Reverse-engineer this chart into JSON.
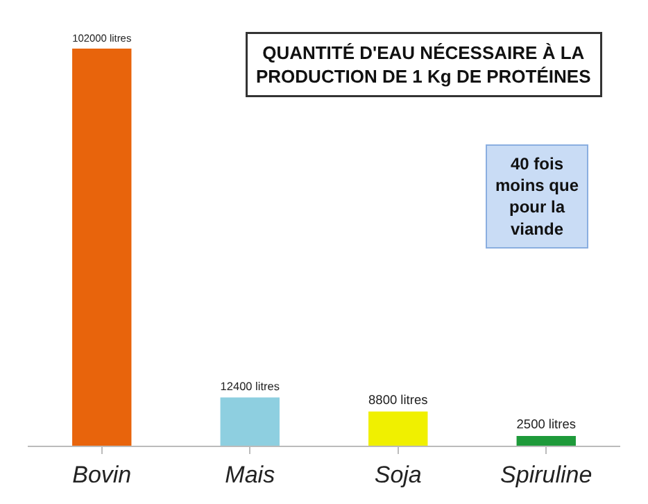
{
  "chart_data": {
    "type": "bar",
    "title": "QUANTITÉ D'EAU NÉCESSAIRE À LA\nPRODUCTION DE 1 Kg DE PROTÉINES",
    "categories": [
      "Bovin",
      "Mais",
      "Soja",
      "Spiruline"
    ],
    "values": [
      102000,
      12400,
      8800,
      2500
    ],
    "value_labels": [
      "102000 litres",
      "12400 litres",
      "8800 litres",
      "2500 litres"
    ],
    "colors": [
      "#e8640c",
      "#8ecfe0",
      "#f0f000",
      "#1e9a3a"
    ],
    "annotations": [
      "40 fois\nmoins que\npour la\nviande"
    ],
    "legend": false
  }
}
